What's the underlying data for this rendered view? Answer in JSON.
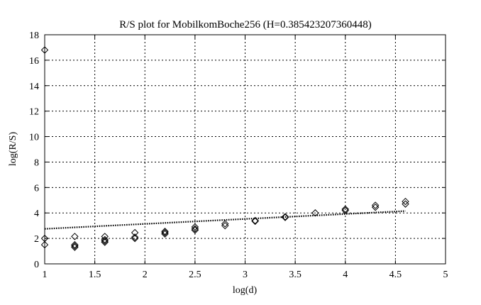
{
  "chart_data": {
    "type": "scatter",
    "title": "R/S plot for MobilkomBoche256 (H=0.385423207360448)",
    "xlabel": "log(d)",
    "ylabel": "log(R/S)",
    "xlim": [
      1,
      5
    ],
    "ylim": [
      0,
      18
    ],
    "xticks": [
      1,
      1.5,
      2,
      2.5,
      3,
      3.5,
      4,
      4.5,
      5
    ],
    "xtick_labels": [
      "1",
      "1.5",
      "2",
      "2.5",
      "3",
      "3.5",
      "4",
      "4.5",
      "5"
    ],
    "yticks": [
      0,
      2,
      4,
      6,
      8,
      10,
      12,
      14,
      16,
      18
    ],
    "ytick_labels": [
      "0",
      "2",
      "4",
      "6",
      "8",
      "10",
      "12",
      "14",
      "16",
      "18"
    ],
    "grid": true,
    "marker": "diamond",
    "points": [
      {
        "x": 1.0,
        "y": 16.8
      },
      {
        "x": 1.0,
        "y": 2.0
      },
      {
        "x": 1.0,
        "y": 1.5
      },
      {
        "x": 1.3,
        "y": 2.15
      },
      {
        "x": 1.3,
        "y": 1.5
      },
      {
        "x": 1.3,
        "y": 1.4
      },
      {
        "x": 1.3,
        "y": 1.3
      },
      {
        "x": 1.6,
        "y": 2.15
      },
      {
        "x": 1.6,
        "y": 1.9
      },
      {
        "x": 1.6,
        "y": 1.8
      },
      {
        "x": 1.6,
        "y": 1.7
      },
      {
        "x": 1.9,
        "y": 2.45
      },
      {
        "x": 1.9,
        "y": 2.1
      },
      {
        "x": 1.9,
        "y": 2.0
      },
      {
        "x": 2.2,
        "y": 2.55
      },
      {
        "x": 2.2,
        "y": 2.45
      },
      {
        "x": 2.2,
        "y": 2.35
      },
      {
        "x": 2.5,
        "y": 2.9
      },
      {
        "x": 2.5,
        "y": 2.75
      },
      {
        "x": 2.5,
        "y": 2.65
      },
      {
        "x": 2.8,
        "y": 3.15
      },
      {
        "x": 2.8,
        "y": 3.0
      },
      {
        "x": 3.1,
        "y": 3.4
      },
      {
        "x": 3.1,
        "y": 3.35
      },
      {
        "x": 3.4,
        "y": 3.7
      },
      {
        "x": 3.4,
        "y": 3.65
      },
      {
        "x": 3.7,
        "y": 4.0
      },
      {
        "x": 4.0,
        "y": 4.3
      },
      {
        "x": 4.0,
        "y": 4.2
      },
      {
        "x": 4.3,
        "y": 4.6
      },
      {
        "x": 4.3,
        "y": 4.45
      },
      {
        "x": 4.6,
        "y": 4.9
      },
      {
        "x": 4.6,
        "y": 4.7
      }
    ],
    "fit_line": {
      "x": [
        1.0,
        4.6
      ],
      "y": [
        2.75,
        4.15
      ]
    }
  }
}
